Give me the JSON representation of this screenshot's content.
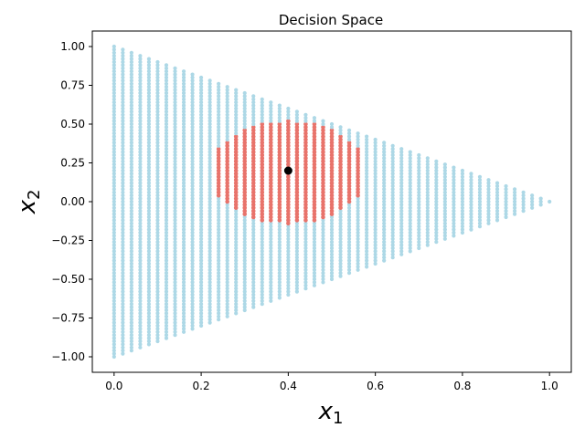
{
  "chart_data": {
    "type": "scatter",
    "title": "Decision Space",
    "xlabel": {
      "base": "x",
      "sub": "1"
    },
    "ylabel": {
      "base": "x",
      "sub": "2"
    },
    "xlim": [
      -0.05,
      1.05
    ],
    "ylim": [
      -1.1,
      1.1
    ],
    "xticks": [
      0.0,
      0.2,
      0.4,
      0.6,
      0.8,
      1.0
    ],
    "xtick_labels": [
      "0.0",
      "0.2",
      "0.4",
      "0.6",
      "0.8",
      "1.0"
    ],
    "yticks": [
      -1.0,
      -0.75,
      -0.5,
      -0.25,
      0.0,
      0.25,
      0.5,
      0.75,
      1.0
    ],
    "ytick_labels": [
      "−1.00",
      "−0.75",
      "−0.50",
      "−0.25",
      "0.00",
      "0.25",
      "0.50",
      "0.75",
      "1.00"
    ],
    "grid": false,
    "feasible_region": {
      "description": "triangle with vertices (0,1), (0,-1), (1,0)",
      "x_step": 0.02,
      "y_step": 0.02,
      "color": "#add8e6"
    },
    "highlighted_region": {
      "shape": "ellipse",
      "center": [
        0.4,
        0.19
      ],
      "radii": [
        0.18,
        0.33
      ],
      "color": "#e8736b"
    },
    "reference_point": {
      "x": 0.4,
      "y": 0.2,
      "color": "#000000"
    },
    "colors": {
      "feasible": "#add8e6",
      "highlight": "#e8736b",
      "reference": "#000000"
    }
  }
}
